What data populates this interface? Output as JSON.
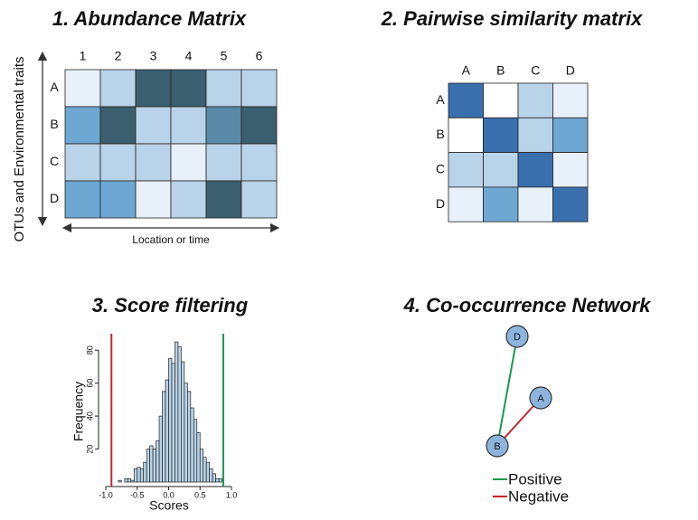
{
  "panels": [
    {
      "title": "1. Abundance Matrix",
      "columns": [
        "1",
        "2",
        "3",
        "4",
        "5",
        "6"
      ],
      "rows": [
        "A",
        "B",
        "C",
        "D"
      ],
      "cells": [
        [
          "#e8f1fa",
          "#b9d3e8",
          "#3b5f6e",
          "#3b5f6e",
          "#b9d3e8",
          "#b9d3e8"
        ],
        [
          "#6fa7d3",
          "#3b5f6e",
          "#b9d3e8",
          "#b9d3e8",
          "#5a8aa8",
          "#3b5f6e"
        ],
        [
          "#b9d3e8",
          "#b9d3e8",
          "#b9d3e8",
          "#e8f1fa",
          "#b9d3e8",
          "#b9d3e8"
        ],
        [
          "#6fa7d3",
          "#6fa7d3",
          "#e8f1fa",
          "#b9d3e8",
          "#3b5f6e",
          "#b9d3e8"
        ]
      ],
      "y_label": "OTUs and Environmental traits",
      "x_label": "Location or time"
    },
    {
      "title": "2. Pairwise similarity matrix",
      "columns": [
        "A",
        "B",
        "C",
        "D"
      ],
      "rows": [
        "A",
        "B",
        "C",
        "D"
      ],
      "cells": [
        [
          "#3a6fad",
          "#ffffff",
          "#b9d3e8",
          "#e8f1fa"
        ],
        [
          "#ffffff",
          "#3a6fad",
          "#b9d3e8",
          "#6fa7d3"
        ],
        [
          "#b9d3e8",
          "#b9d3e8",
          "#3a6fad",
          "#e8f1fa"
        ],
        [
          "#e8f1fa",
          "#6fa7d3",
          "#e8f1fa",
          "#3a6fad"
        ]
      ]
    },
    {
      "title": "3. Score filtering",
      "chart_data": {
        "type": "histogram",
        "bins": [
          -0.8,
          -0.75,
          -0.7,
          -0.65,
          -0.6,
          -0.55,
          -0.5,
          -0.45,
          -0.4,
          -0.35,
          -0.3,
          -0.25,
          -0.2,
          -0.15,
          -0.1,
          -0.05,
          0,
          0.05,
          0.1,
          0.15,
          0.2,
          0.25,
          0.3,
          0.35,
          0.4,
          0.45,
          0.5,
          0.55,
          0.6,
          0.65,
          0.7,
          0.75,
          0.8,
          0.85
        ],
        "counts": [
          1,
          0,
          2,
          2,
          1,
          8,
          9,
          8,
          12,
          20,
          22,
          20,
          25,
          40,
          55,
          62,
          75,
          72,
          85,
          82,
          73,
          60,
          55,
          45,
          38,
          30,
          20,
          15,
          12,
          8,
          5,
          2,
          2
        ],
        "color": "#b9d3e8",
        "xlim": [
          -1,
          1
        ],
        "ylim": [
          0,
          90
        ],
        "xticks": [
          {
            "value": -1,
            "label": "-1.0"
          },
          {
            "value": -0.5,
            "label": "-0.5"
          },
          {
            "value": 0,
            "label": "0.0"
          },
          {
            "value": 0.5,
            "label": "0.5"
          },
          {
            "value": 1,
            "label": "1.0"
          }
        ],
        "yticks": [
          20,
          40,
          60,
          80
        ],
        "x_label": "Scores",
        "y_label": "Frequency",
        "thresholds": [
          {
            "value": -0.91,
            "color": "#c0272d"
          },
          {
            "value": 0.87,
            "color": "#1a9850"
          }
        ]
      }
    },
    {
      "title": "4. Co-occurrence Network",
      "nodes": [
        {
          "label": "D"
        },
        {
          "label": "A"
        },
        {
          "label": "B"
        }
      ],
      "legend": [
        {
          "label": "Positive",
          "color": "#1a9850"
        },
        {
          "label": "Negative",
          "color": "#c0272d"
        }
      ]
    }
  ]
}
